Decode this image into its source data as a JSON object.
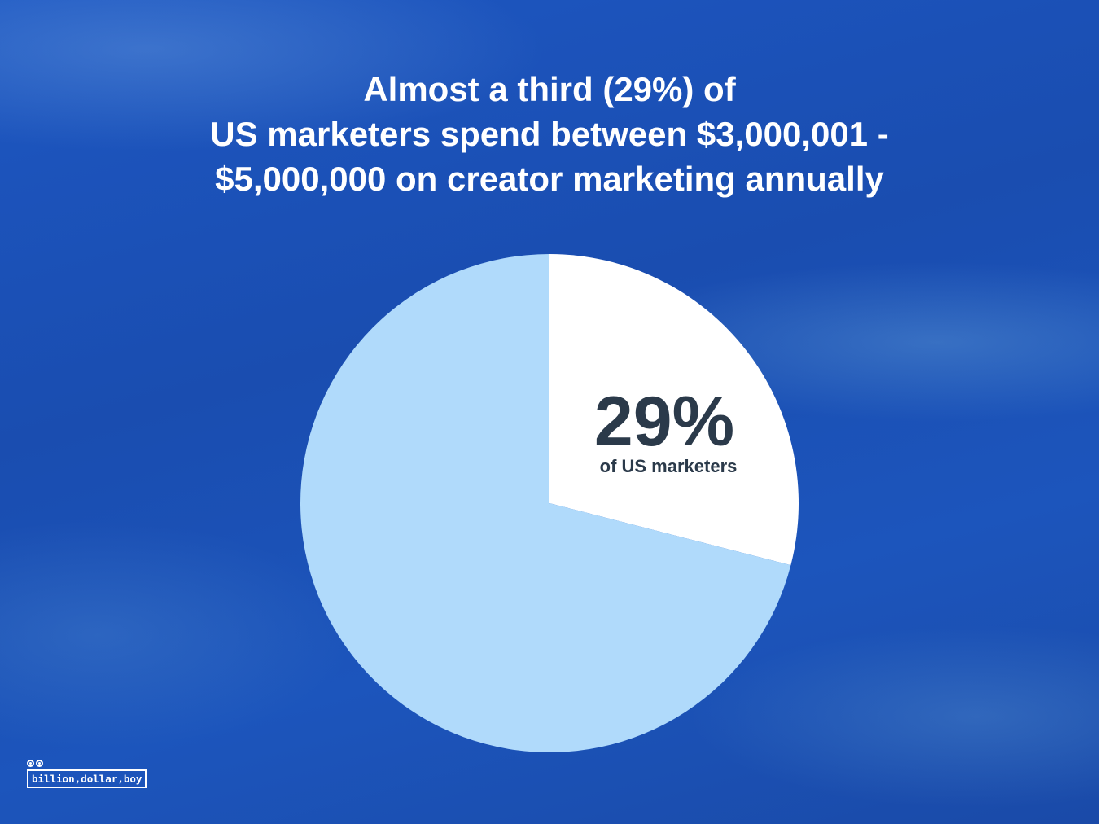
{
  "title": {
    "lines": [
      "Almost a third (29%) of",
      "US marketers spend between $3,000,001 -",
      "$5,000,000 on creator marketing annually"
    ]
  },
  "chart_data": {
    "type": "pie",
    "title": "Almost a third (29%) of US marketers spend between $3,000,001 - $5,000,000 on creator marketing annually",
    "slices": [
      {
        "label": "of US marketers",
        "value": 29,
        "display": "29%",
        "color": "#ffffff"
      },
      {
        "label": "",
        "value": 71,
        "color": "#b0dafb"
      }
    ],
    "annotation": {
      "value_text": "29%",
      "sub_text": "of US marketers",
      "color": "#2b3a4a"
    }
  },
  "logo": {
    "text": "billion,dollar,boy"
  },
  "colors": {
    "background": "#1a4fb0",
    "text": "#ffffff"
  }
}
